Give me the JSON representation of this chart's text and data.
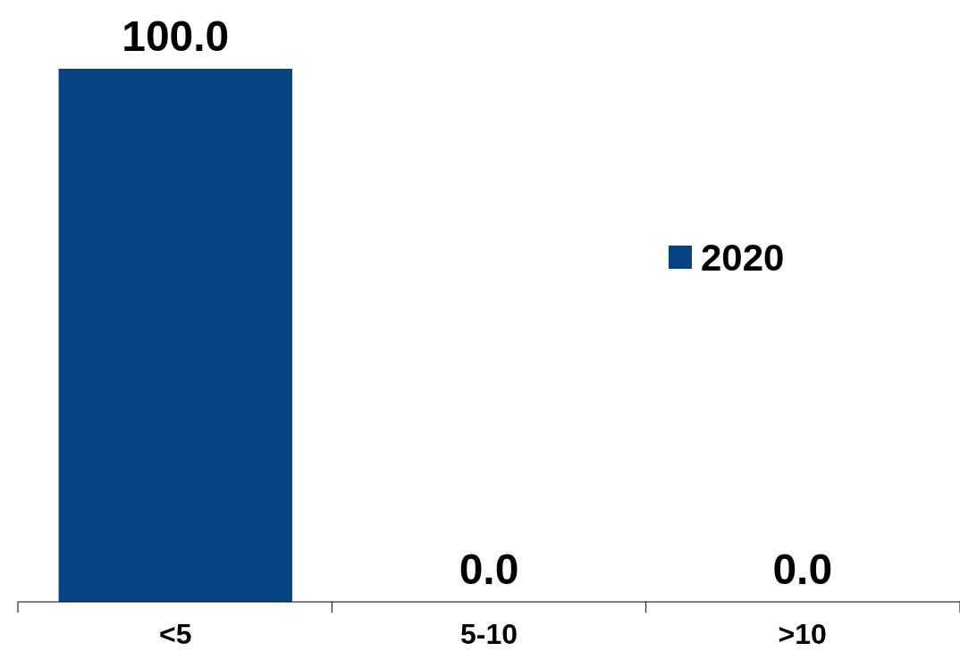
{
  "chart_data": {
    "type": "bar",
    "categories": [
      "<5",
      "5-10",
      ">10"
    ],
    "series": [
      {
        "name": "2020",
        "color": "#064385",
        "values": [
          100.0,
          0.0,
          0.0
        ],
        "value_labels": [
          "100.0",
          "0.0",
          "0.0"
        ]
      }
    ],
    "legend": "right"
  }
}
